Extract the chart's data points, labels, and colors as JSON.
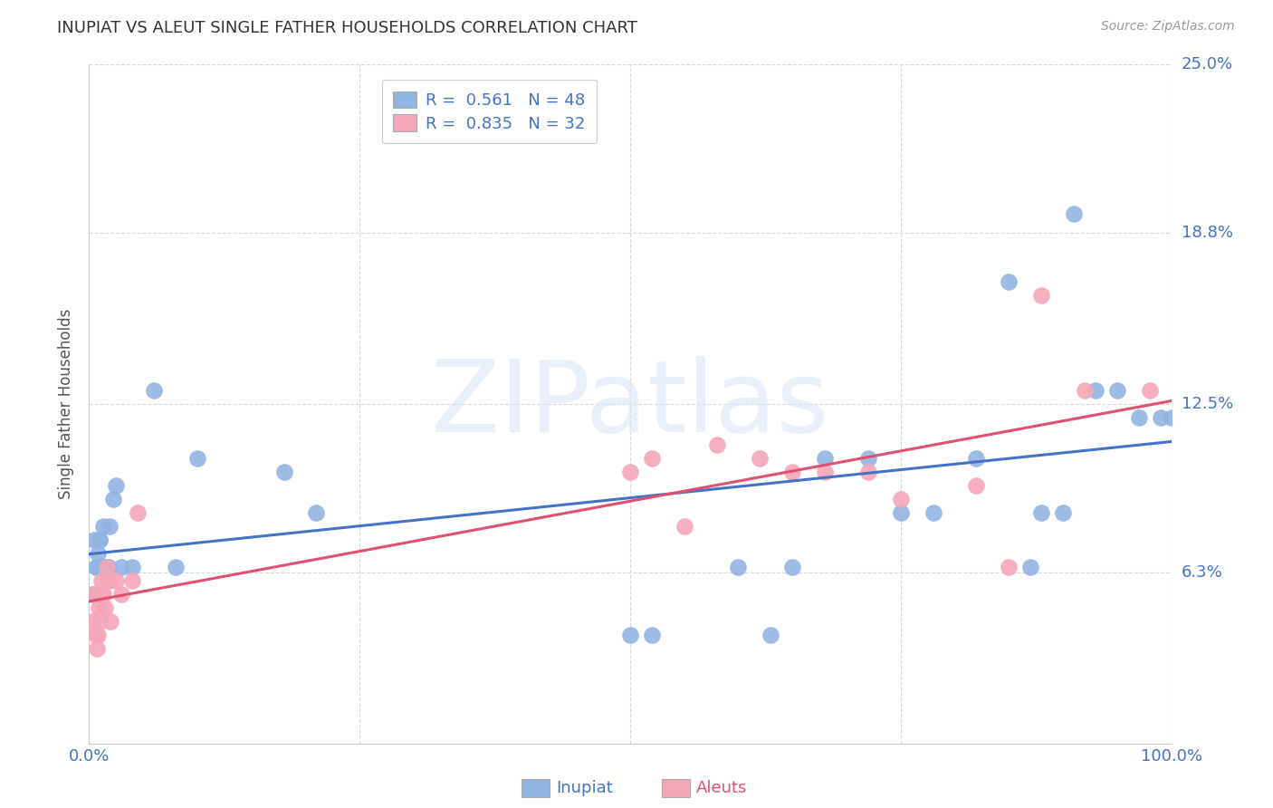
{
  "title": "INUPIAT VS ALEUT SINGLE FATHER HOUSEHOLDS CORRELATION CHART",
  "source": "Source: ZipAtlas.com",
  "ylabel": "Single Father Households",
  "xlim": [
    0,
    1.0
  ],
  "ylim": [
    0,
    0.25
  ],
  "ytick_labels": [
    "6.3%",
    "12.5%",
    "18.8%",
    "25.0%"
  ],
  "ytick_values": [
    0.063,
    0.125,
    0.188,
    0.25
  ],
  "background_color": "#ffffff",
  "grid_color": "#d8d8d8",
  "inupiat_color": "#92b4e3",
  "aleuts_color": "#f4a7b9",
  "inupiat_line_color": "#4472c4",
  "aleuts_line_color": "#e05070",
  "legend_text_color": "#4472c4",
  "inupiat_x": [
    0.003,
    0.005,
    0.006,
    0.007,
    0.008,
    0.009,
    0.009,
    0.01,
    0.01,
    0.011,
    0.012,
    0.013,
    0.013,
    0.014,
    0.015,
    0.016,
    0.017,
    0.018,
    0.019,
    0.022,
    0.025,
    0.03,
    0.04,
    0.06,
    0.08,
    0.1,
    0.18,
    0.21,
    0.5,
    0.52,
    0.6,
    0.63,
    0.65,
    0.68,
    0.72,
    0.75,
    0.78,
    0.82,
    0.85,
    0.87,
    0.88,
    0.9,
    0.91,
    0.93,
    0.95,
    0.97,
    0.99,
    1.0
  ],
  "inupiat_y": [
    0.055,
    0.075,
    0.065,
    0.065,
    0.07,
    0.065,
    0.065,
    0.075,
    0.075,
    0.065,
    0.065,
    0.065,
    0.08,
    0.065,
    0.065,
    0.065,
    0.065,
    0.065,
    0.08,
    0.09,
    0.095,
    0.065,
    0.065,
    0.13,
    0.065,
    0.105,
    0.1,
    0.085,
    0.04,
    0.04,
    0.065,
    0.04,
    0.065,
    0.105,
    0.105,
    0.085,
    0.085,
    0.105,
    0.17,
    0.065,
    0.085,
    0.085,
    0.195,
    0.13,
    0.13,
    0.12,
    0.12,
    0.12
  ],
  "aleuts_x": [
    0.003,
    0.005,
    0.006,
    0.007,
    0.008,
    0.009,
    0.01,
    0.011,
    0.012,
    0.013,
    0.015,
    0.016,
    0.018,
    0.02,
    0.025,
    0.03,
    0.04,
    0.045,
    0.5,
    0.52,
    0.55,
    0.58,
    0.62,
    0.65,
    0.68,
    0.72,
    0.75,
    0.82,
    0.85,
    0.88,
    0.92,
    0.98
  ],
  "aleuts_y": [
    0.045,
    0.055,
    0.04,
    0.035,
    0.04,
    0.05,
    0.045,
    0.06,
    0.055,
    0.055,
    0.05,
    0.065,
    0.06,
    0.045,
    0.06,
    0.055,
    0.06,
    0.085,
    0.1,
    0.105,
    0.08,
    0.11,
    0.105,
    0.1,
    0.1,
    0.1,
    0.09,
    0.095,
    0.065,
    0.165,
    0.13,
    0.13
  ]
}
